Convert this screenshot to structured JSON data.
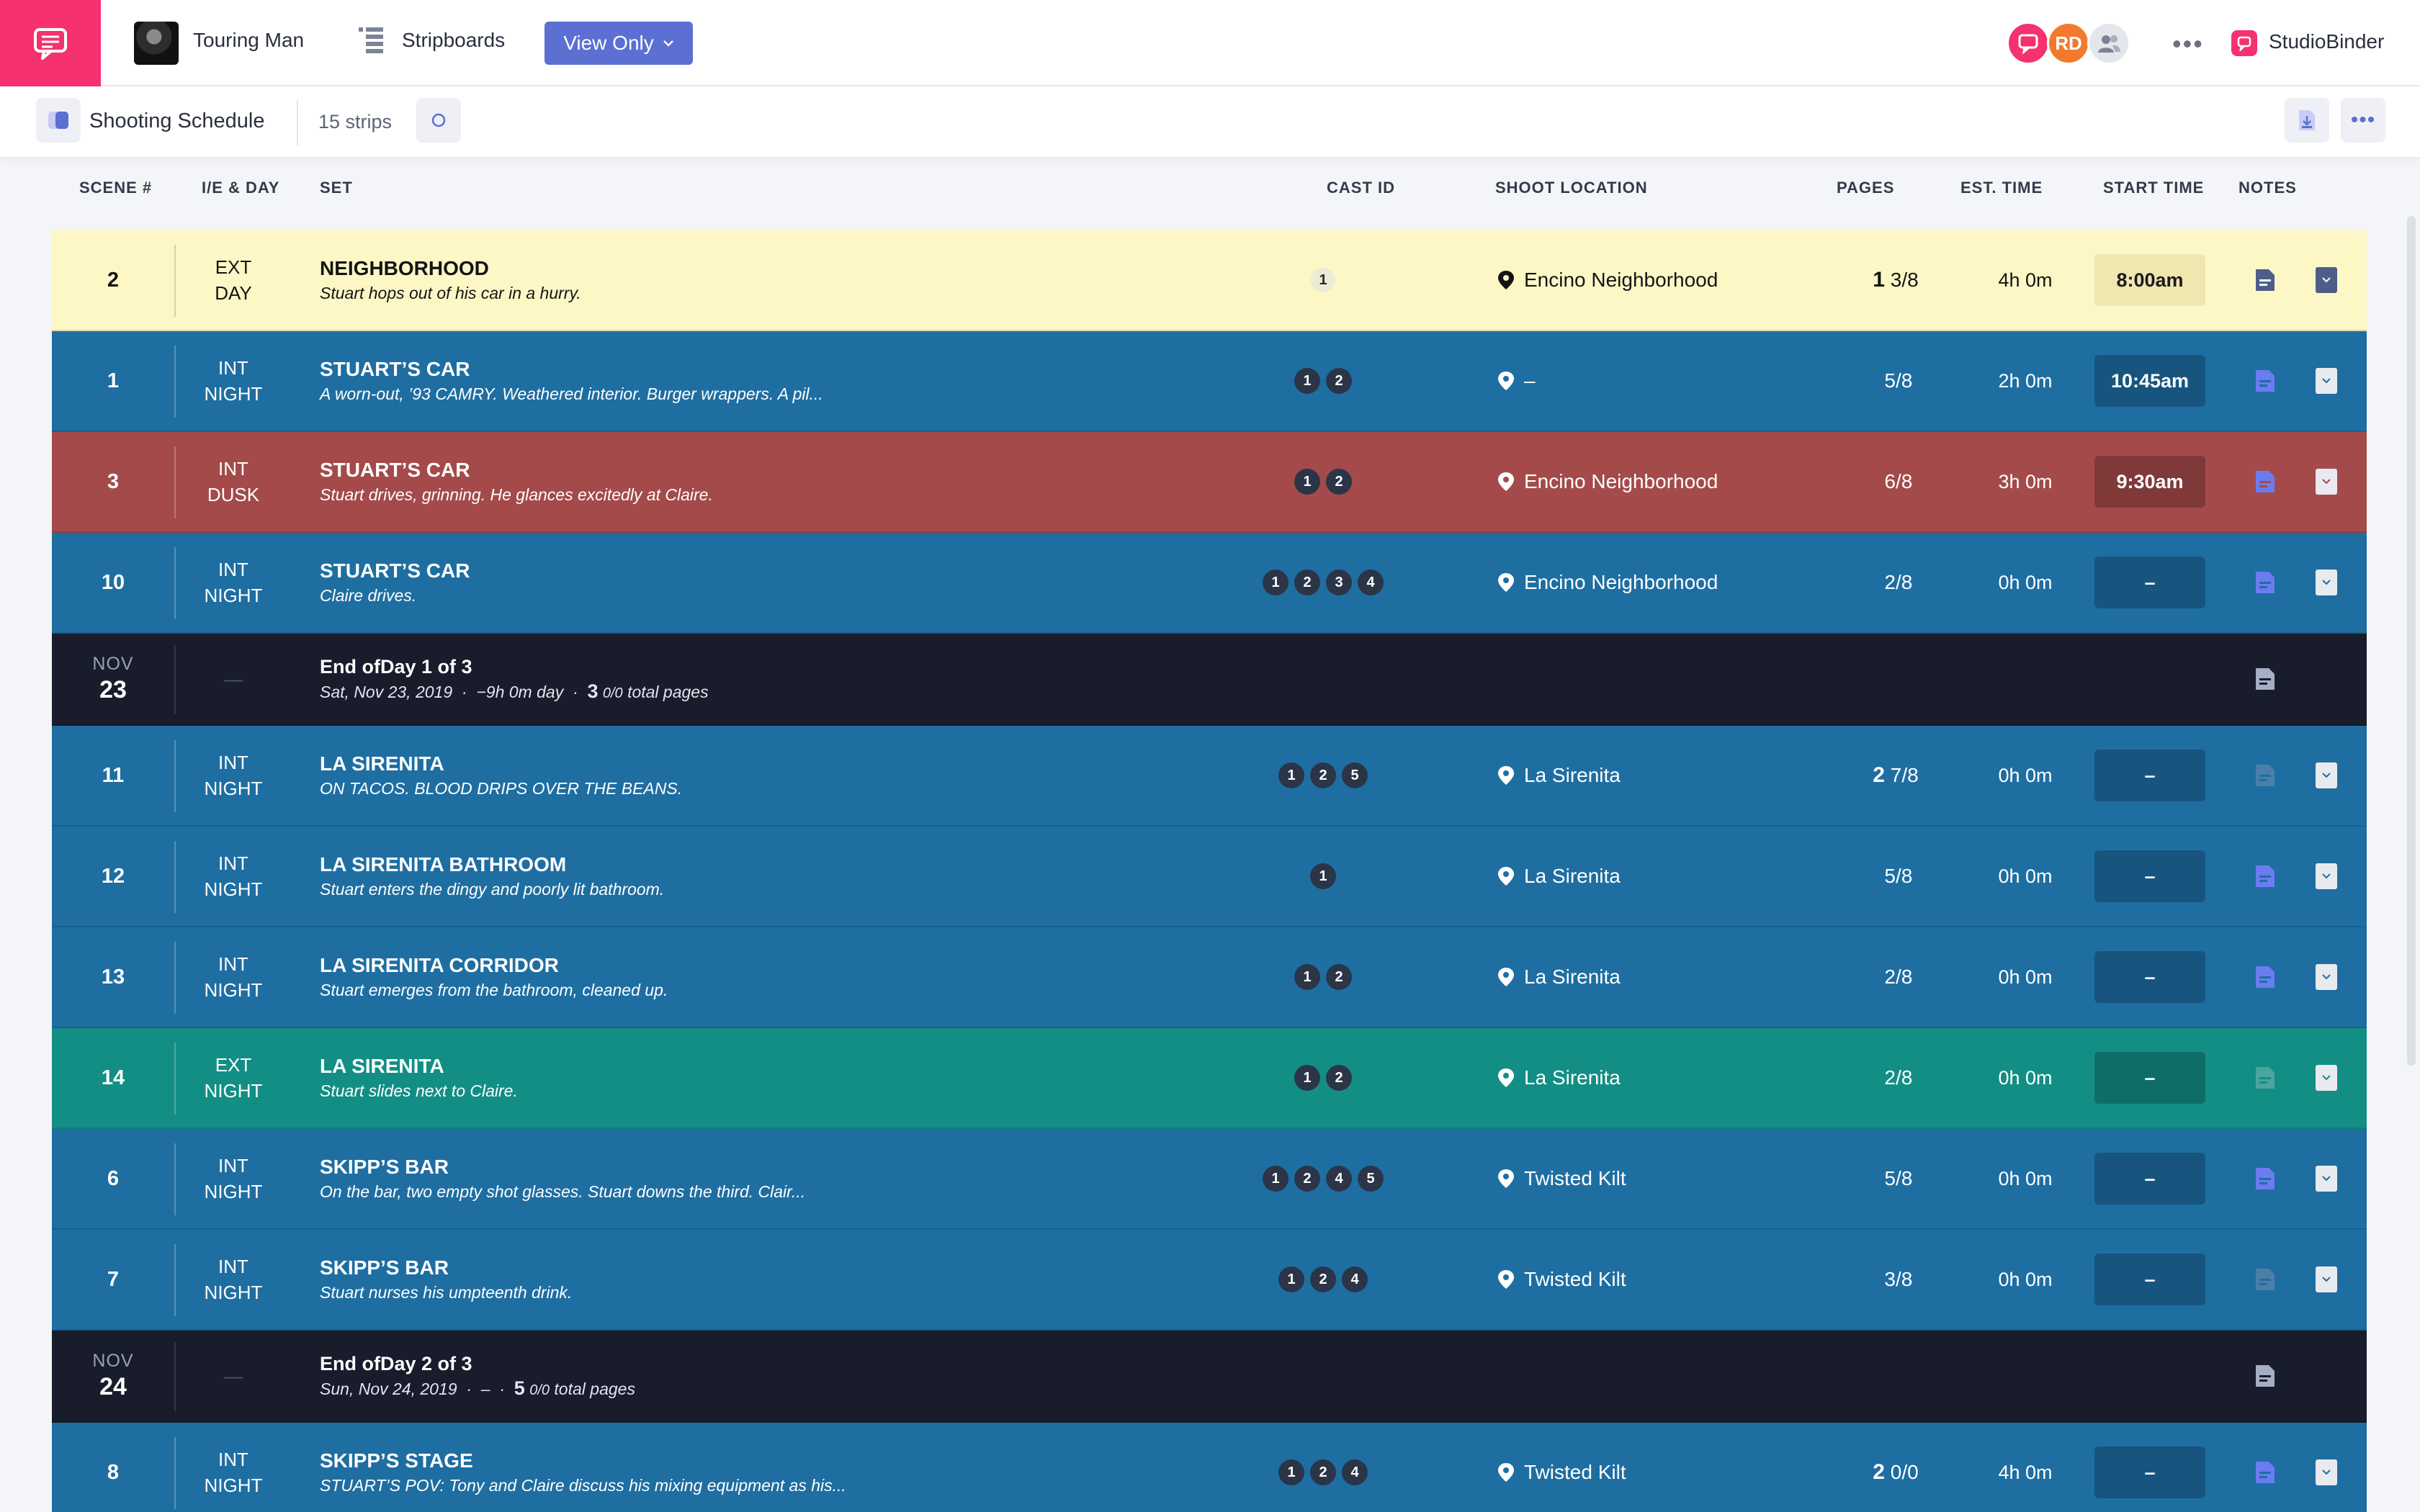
{
  "header": {
    "project_name": "Touring Man",
    "stripboards_label": "Stripboards",
    "view_mode": "View Only",
    "avatars": [
      {
        "initials": ""
      },
      {
        "initials": "RD"
      },
      {
        "initials": ""
      }
    ],
    "more_label": "•••",
    "brand_name": "StudioBinder",
    "colors": {
      "brand": "#f5316f",
      "accent": "#5c6fd3"
    }
  },
  "subbar": {
    "title": "Shooting Schedule",
    "strip_count": "15 strips",
    "more_label": "•••"
  },
  "columns": {
    "scene": "SCENE #",
    "ie_day": "I/E & DAY",
    "set": "SET",
    "cast_id": "CAST ID",
    "location": "SHOOT LOCATION",
    "pages": "PAGES",
    "est_time": "EST. TIME",
    "start_time": "START TIME",
    "notes": "NOTES"
  },
  "strips": [
    {
      "scene": "2",
      "ie": "EXT",
      "day": "DAY",
      "set": "NEIGHBORHOOD",
      "desc": "Stuart hops out of his car in a hurry.",
      "cast": [
        "1"
      ],
      "location": "Encino Neighborhood",
      "pages_whole": "1",
      "pages_frac": "3/8",
      "est": "4h 0m",
      "start": "8:00am",
      "color": "yellow"
    },
    {
      "scene": "1",
      "ie": "INT",
      "day": "NIGHT",
      "set": "STUART’S CAR",
      "desc": "A worn-out, ’93 CAMRY. Weathered interior. Burger wrappers. A pil...",
      "cast": [
        "1",
        "2"
      ],
      "location": "–",
      "pages_whole": "",
      "pages_frac": "5/8",
      "est": "2h 0m",
      "start": "10:45am",
      "color": "blue"
    },
    {
      "scene": "3",
      "ie": "INT",
      "day": "DUSK",
      "set": "STUART’S CAR",
      "desc": "Stuart drives, grinning. He glances excitedly at Claire.",
      "cast": [
        "1",
        "2"
      ],
      "location": "Encino Neighborhood",
      "pages_whole": "",
      "pages_frac": "6/8",
      "est": "3h 0m",
      "start": "9:30am",
      "color": "red"
    },
    {
      "scene": "10",
      "ie": "INT",
      "day": "NIGHT",
      "set": "STUART’S CAR",
      "desc": "Claire drives.",
      "cast": [
        "1",
        "2",
        "3",
        "4"
      ],
      "location": "Encino Neighborhood",
      "pages_whole": "",
      "pages_frac": "2/8",
      "est": "0h 0m",
      "start": "–",
      "color": "blue"
    },
    {
      "eod": true,
      "month": "NOV",
      "day_num": "23",
      "dash": "—",
      "title": "End ofDay 1 of 3",
      "date_text": "Sat, Nov 23, 2019",
      "duration_text": "−9h 0m day",
      "pages_whole": "3",
      "pages_frac": "0/0",
      "pages_suffix": "total pages"
    },
    {
      "scene": "11",
      "ie": "INT",
      "day": "NIGHT",
      "set": "LA SIRENITA",
      "desc": "ON TACOS. BLOOD DRIPS OVER THE BEANS.",
      "cast": [
        "1",
        "2",
        "5"
      ],
      "location": "La Sirenita",
      "pages_whole": "2",
      "pages_frac": "7/8",
      "est": "0h 0m",
      "start": "–",
      "color": "blue"
    },
    {
      "scene": "12",
      "ie": "INT",
      "day": "NIGHT",
      "set": "LA SIRENITA BATHROOM",
      "desc": "Stuart enters the dingy and poorly lit bathroom.",
      "cast": [
        "1"
      ],
      "location": "La Sirenita",
      "pages_whole": "",
      "pages_frac": "5/8",
      "est": "0h 0m",
      "start": "–",
      "color": "blue"
    },
    {
      "scene": "13",
      "ie": "INT",
      "day": "NIGHT",
      "set": "LA SIRENITA CORRIDOR",
      "desc": "Stuart emerges from the bathroom, cleaned up.",
      "cast": [
        "1",
        "2"
      ],
      "location": "La Sirenita",
      "pages_whole": "",
      "pages_frac": "2/8",
      "est": "0h 0m",
      "start": "–",
      "color": "blue"
    },
    {
      "scene": "14",
      "ie": "EXT",
      "day": "NIGHT",
      "set": "LA SIRENITA",
      "desc": "Stuart slides next to Claire.",
      "cast": [
        "1",
        "2"
      ],
      "location": "La Sirenita",
      "pages_whole": "",
      "pages_frac": "2/8",
      "est": "0h 0m",
      "start": "–",
      "color": "teal"
    },
    {
      "scene": "6",
      "ie": "INT",
      "day": "NIGHT",
      "set": "SKIPP’S BAR",
      "desc": "On the bar, two empty shot glasses. Stuart downs the third. Clair...",
      "cast": [
        "1",
        "2",
        "4",
        "5"
      ],
      "location": "Twisted Kilt",
      "pages_whole": "",
      "pages_frac": "5/8",
      "est": "0h 0m",
      "start": "–",
      "color": "blue"
    },
    {
      "scene": "7",
      "ie": "INT",
      "day": "NIGHT",
      "set": "SKIPP’S BAR",
      "desc": "Stuart nurses his umpteenth drink.",
      "cast": [
        "1",
        "2",
        "4"
      ],
      "location": "Twisted Kilt",
      "pages_whole": "",
      "pages_frac": "3/8",
      "est": "0h 0m",
      "start": "–",
      "color": "blue"
    },
    {
      "eod": true,
      "month": "NOV",
      "day_num": "24",
      "dash": "—",
      "title": "End ofDay 2 of 3",
      "date_text": "Sun, Nov 24, 2019",
      "duration_text": "–",
      "pages_whole": "5",
      "pages_frac": "0/0",
      "pages_suffix": "total pages"
    },
    {
      "scene": "8",
      "ie": "INT",
      "day": "NIGHT",
      "set": "SKIPP’S STAGE",
      "desc": "STUART’S POV: Tony and Claire discuss his mixing equipment as his...",
      "cast": [
        "1",
        "2",
        "4"
      ],
      "location": "Twisted Kilt",
      "pages_whole": "2",
      "pages_frac": "0/0",
      "est": "4h 0m",
      "start": "–",
      "color": "blue"
    }
  ]
}
